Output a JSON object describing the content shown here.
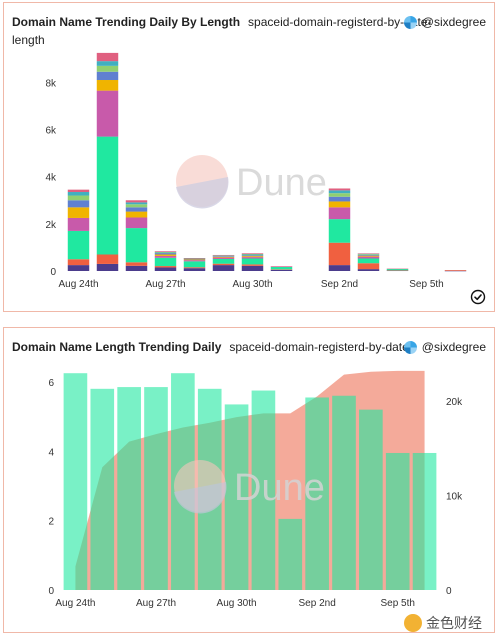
{
  "panel1": {
    "title": "Domain Name Trending Daily By Length",
    "subtitle": "spaceid-domain-registerd-by-date-",
    "subtitle2": "length",
    "author": "@sixdegree",
    "watermark": "Dune"
  },
  "panel2": {
    "title": "Domain Name Length Trending Daily",
    "subtitle": "spaceid-domain-registerd-by-date",
    "author": "@sixdegree",
    "watermark": "Dune"
  },
  "footer": {
    "logo_text": "金色财经"
  },
  "chart_data": [
    {
      "type": "bar",
      "stacked": true,
      "title": "Domain Name Trending Daily By Length",
      "x_tick_labels": [
        "Aug 24th",
        "Aug 27th",
        "Aug 30th",
        "Sep 2nd",
        "Sep 5th"
      ],
      "y_ticks": [
        "0",
        "2k",
        "4k",
        "6k",
        "8k"
      ],
      "ylim": [
        0,
        9500
      ],
      "categories": [
        "Aug 24",
        "Aug 25",
        "Aug 26",
        "Aug 27",
        "Aug 28",
        "Aug 29",
        "Aug 30",
        "Aug 31",
        "Sep 1",
        "Sep 2",
        "Sep 3",
        "Sep 4",
        "Sep 5",
        "Sep 6"
      ],
      "segment_colors": [
        "#4b3c8c",
        "#f06040",
        "#20e8a0",
        "#c85aaa",
        "#f0b400",
        "#6080d0",
        "#90d070",
        "#40b0c0",
        "#e06080"
      ],
      "series": [
        {
          "color": "#4b3c8c",
          "values": [
            250,
            300,
            220,
            150,
            120,
            250,
            220,
            50,
            0,
            250,
            80,
            20,
            0,
            10
          ]
        },
        {
          "color": "#f06040",
          "values": [
            250,
            400,
            150,
            60,
            40,
            60,
            60,
            20,
            0,
            950,
            250,
            10,
            0,
            30
          ]
        },
        {
          "color": "#20e8a0",
          "values": [
            1200,
            5000,
            1450,
            350,
            250,
            200,
            250,
            100,
            0,
            1000,
            200,
            60,
            0,
            0
          ]
        },
        {
          "color": "#c85aaa",
          "values": [
            550,
            1950,
            450,
            80,
            50,
            60,
            60,
            20,
            0,
            500,
            80,
            0,
            0,
            0
          ]
        },
        {
          "color": "#f0b400",
          "values": [
            450,
            450,
            250,
            60,
            30,
            30,
            40,
            0,
            0,
            250,
            40,
            0,
            0,
            0
          ]
        },
        {
          "color": "#6080d0",
          "values": [
            300,
            350,
            180,
            60,
            20,
            30,
            40,
            0,
            0,
            200,
            30,
            0,
            0,
            0
          ]
        },
        {
          "color": "#90d070",
          "values": [
            200,
            250,
            130,
            30,
            20,
            20,
            30,
            0,
            0,
            150,
            30,
            0,
            0,
            0
          ]
        },
        {
          "color": "#40b0c0",
          "values": [
            150,
            200,
            80,
            20,
            10,
            20,
            20,
            0,
            0,
            120,
            20,
            0,
            0,
            0
          ]
        },
        {
          "color": "#e06080",
          "values": [
            100,
            350,
            90,
            30,
            10,
            10,
            30,
            10,
            0,
            80,
            20,
            10,
            0,
            0
          ]
        }
      ]
    },
    {
      "type": "bar+area",
      "title": "Domain Name Length Trending Daily",
      "x_tick_labels": [
        "Aug 24th",
        "Aug 27th",
        "Aug 30th",
        "Sep 2nd",
        "Sep 5th"
      ],
      "y_left_ticks": [
        "0",
        "2",
        "4",
        "6"
      ],
      "y_right_ticks": [
        "0",
        "10k",
        "20k"
      ],
      "ylim_left": [
        0,
        6.4
      ],
      "ylim_right": [
        0,
        23500
      ],
      "categories": [
        "Aug 24",
        "Aug 25",
        "Aug 26",
        "Aug 27",
        "Aug 28",
        "Aug 29",
        "Aug 30",
        "Aug 31",
        "Sep 1",
        "Sep 2",
        "Sep 3",
        "Sep 4",
        "Sep 5",
        "Sep 6"
      ],
      "series": [
        {
          "kind": "bar",
          "axis": "left",
          "color": "#20e8a0",
          "values": [
            6.25,
            5.8,
            5.85,
            5.85,
            6.25,
            5.8,
            5.35,
            5.75,
            2.05,
            5.55,
            5.6,
            5.2,
            3.95,
            3.95
          ]
        },
        {
          "kind": "area",
          "axis": "right",
          "color": "#f08e78",
          "values": [
            2500,
            13000,
            15700,
            16500,
            17200,
            17700,
            18300,
            18700,
            18700,
            20500,
            22800,
            23100,
            23200,
            23200
          ]
        }
      ]
    }
  ]
}
